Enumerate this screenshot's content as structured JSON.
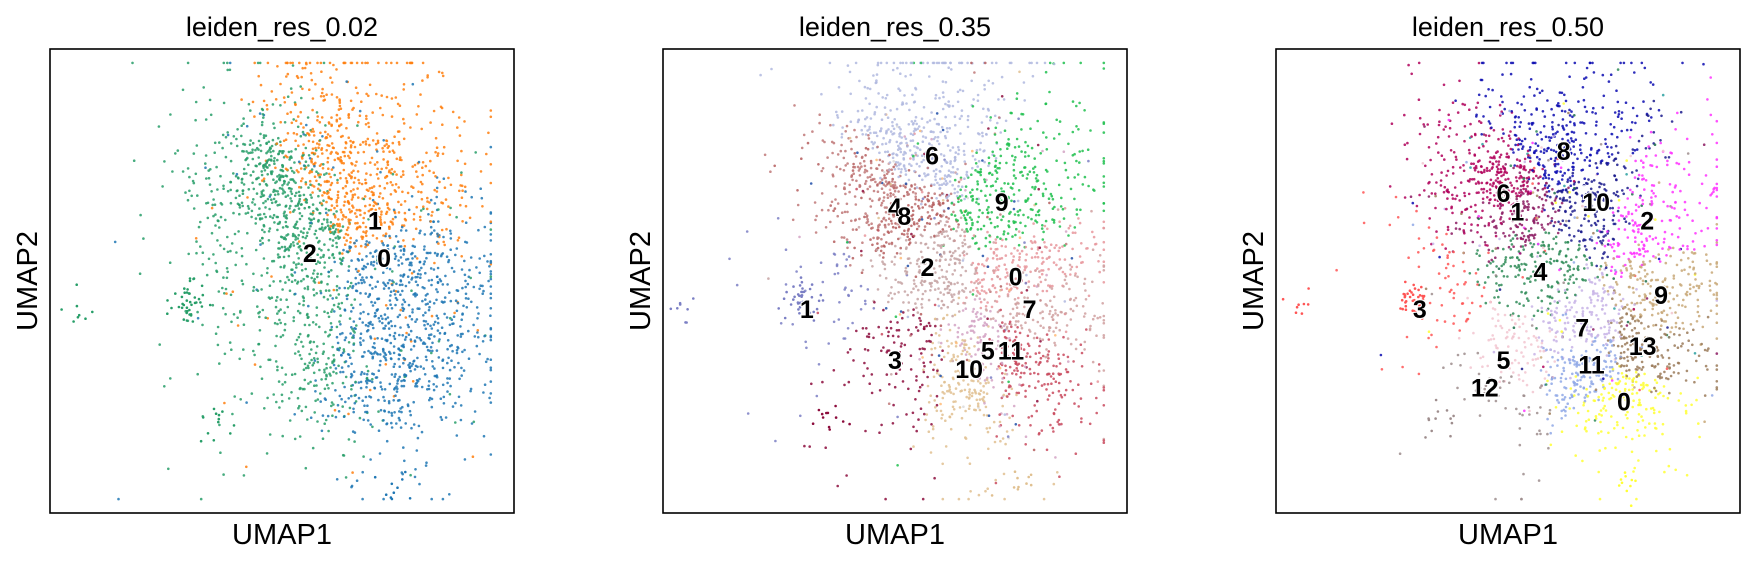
{
  "chart_data": [
    {
      "type": "scatter",
      "title": "leiden_res_0.02",
      "xlabel": "UMAP1",
      "ylabel": "UMAP2",
      "xticks": [],
      "yticks": [],
      "legend": "on data",
      "clusters": [
        {
          "label": "0",
          "x": 0.72,
          "y": 0.55,
          "color": "#1f77b4"
        },
        {
          "label": "1",
          "x": 0.7,
          "y": 0.63,
          "color": "#ff7f0e"
        },
        {
          "label": "2",
          "x": 0.56,
          "y": 0.56,
          "color": "#279e68"
        }
      ]
    },
    {
      "type": "scatter",
      "title": "leiden_res_0.35",
      "xlabel": "UMAP1",
      "ylabel": "UMAP2",
      "xticks": [],
      "yticks": [],
      "legend": "on data",
      "clusters": [
        {
          "label": "0",
          "x": 0.76,
          "y": 0.51,
          "color": "#e7969c"
        },
        {
          "label": "1",
          "x": 0.31,
          "y": 0.44,
          "color": "#7b7fc4"
        },
        {
          "label": "2",
          "x": 0.57,
          "y": 0.53,
          "color": "#c5a3a3"
        },
        {
          "label": "3",
          "x": 0.5,
          "y": 0.33,
          "color": "#8c0c3c"
        },
        {
          "label": "4",
          "x": 0.5,
          "y": 0.66,
          "color": "#c07878"
        },
        {
          "label": "5",
          "x": 0.7,
          "y": 0.35,
          "color": "#d4a3c4"
        },
        {
          "label": "6",
          "x": 0.58,
          "y": 0.77,
          "color": "#b0b8df"
        },
        {
          "label": "7",
          "x": 0.79,
          "y": 0.44,
          "color": "#d0a0a0"
        },
        {
          "label": "8",
          "x": 0.52,
          "y": 0.64,
          "color": "#b55d5d"
        },
        {
          "label": "9",
          "x": 0.73,
          "y": 0.67,
          "color": "#1fbf4e"
        },
        {
          "label": "10",
          "x": 0.66,
          "y": 0.31,
          "color": "#e0c090"
        },
        {
          "label": "11",
          "x": 0.75,
          "y": 0.35,
          "color": "#c94a5e"
        }
      ],
      "extra_colors": [
        "#1f4ea8",
        "#ffbb78",
        "#dbdbdb"
      ]
    },
    {
      "type": "scatter",
      "title": "leiden_res_0.50",
      "xlabel": "UMAP1",
      "ylabel": "UMAP2",
      "xticks": [],
      "yticks": [],
      "legend": "on data",
      "clusters": [
        {
          "label": "0",
          "x": 0.75,
          "y": 0.24,
          "color": "#ffff33"
        },
        {
          "label": "1",
          "x": 0.52,
          "y": 0.65,
          "color": "#8b1a62"
        },
        {
          "label": "2",
          "x": 0.8,
          "y": 0.63,
          "color": "#ff33ff"
        },
        {
          "label": "3",
          "x": 0.31,
          "y": 0.44,
          "color": "#ff5555"
        },
        {
          "label": "4",
          "x": 0.57,
          "y": 0.52,
          "color": "#2e8b57"
        },
        {
          "label": "5",
          "x": 0.49,
          "y": 0.33,
          "color": "#f2c6d0"
        },
        {
          "label": "6",
          "x": 0.49,
          "y": 0.69,
          "color": "#b0005a"
        },
        {
          "label": "7",
          "x": 0.66,
          "y": 0.4,
          "color": "#c7b3e6"
        },
        {
          "label": "8",
          "x": 0.62,
          "y": 0.78,
          "color": "#0a0ab0"
        },
        {
          "label": "9",
          "x": 0.83,
          "y": 0.47,
          "color": "#c8a878"
        },
        {
          "label": "10",
          "x": 0.69,
          "y": 0.67,
          "color": "#1a1a8c"
        },
        {
          "label": "11",
          "x": 0.68,
          "y": 0.32,
          "color": "#8fa8e6"
        },
        {
          "label": "12",
          "x": 0.45,
          "y": 0.27,
          "color": "#9e8d8d"
        },
        {
          "label": "13",
          "x": 0.79,
          "y": 0.36,
          "color": "#9b7b5b"
        }
      ],
      "extra_colors": [
        "#1b6e4a",
        "#2aa0a0",
        "#ffffff"
      ]
    }
  ]
}
